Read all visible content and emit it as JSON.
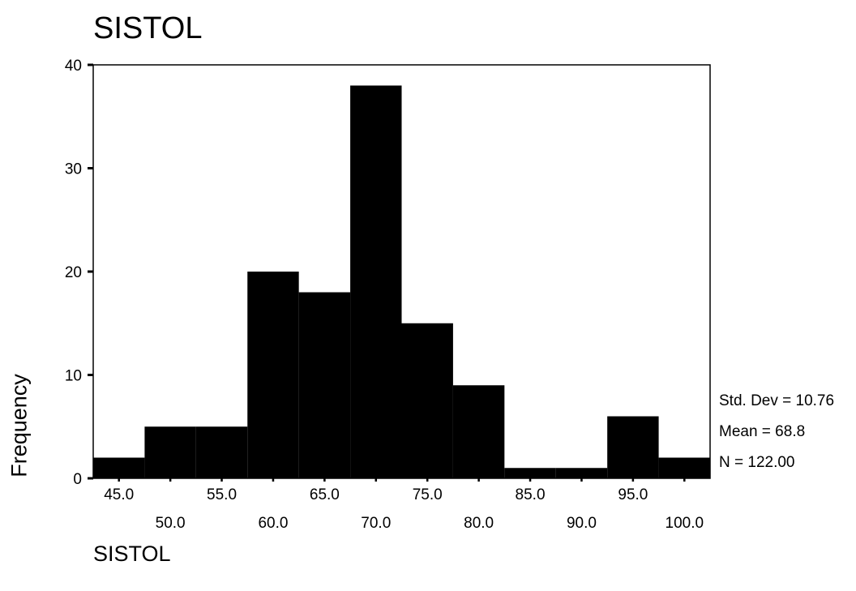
{
  "chart_data": {
    "type": "bar",
    "title": "SISTOL",
    "xlabel": "SISTOL",
    "ylabel": "Frequency",
    "bin_width": 5,
    "bin_centers": [
      45,
      50,
      55,
      60,
      65,
      70,
      75,
      80,
      85,
      90,
      95,
      100
    ],
    "values": [
      2,
      5,
      5,
      20,
      18,
      38,
      15,
      9,
      1,
      1,
      6,
      2
    ],
    "xlim": [
      42.5,
      102.5
    ],
    "ylim": [
      0,
      40
    ],
    "yticks": [
      0,
      10,
      20,
      30,
      40
    ],
    "xtick_labels_upper": [
      "45.0",
      "55.0",
      "65.0",
      "75.0",
      "85.0",
      "95.0"
    ],
    "xtick_labels_lower": [
      "50.0",
      "60.0",
      "70.0",
      "80.0",
      "90.0",
      "100.0"
    ],
    "stats": {
      "std_dev": "Std. Dev = 10.76",
      "mean": "Mean = 68.8",
      "n": "N = 122.00"
    },
    "bar_color": "#000000"
  }
}
